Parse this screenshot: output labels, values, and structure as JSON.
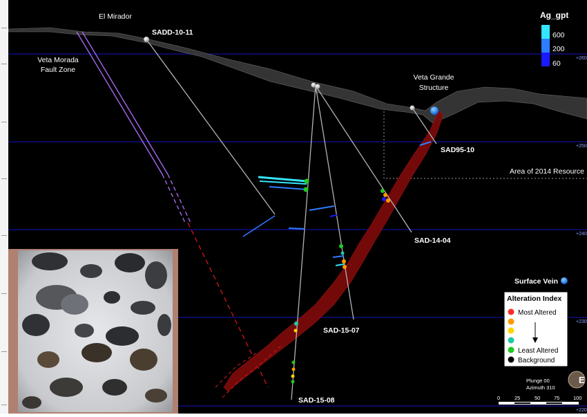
{
  "labels": {
    "el_mirador": "El Mirador",
    "fault_line1": "Veta Morada",
    "fault_line2": "Fault Zone",
    "veta_grande_line1": "Veta Grande",
    "veta_grande_line2": "Structure",
    "area_2014": "Area of 2014 Resource"
  },
  "drillholes": {
    "sadd_10_11": "SADD-10-11",
    "sad95_10": "SAD95-10",
    "sad_14_04": "SAD-14-04",
    "sad_15_07": "SAD-15-07",
    "sad_15_08": "SAD-15-08"
  },
  "elevation_ticks": [
    "+260",
    "+250",
    "+240",
    "+230",
    "+220"
  ],
  "grade_legend": {
    "title": "Ag_gpt",
    "entries": [
      {
        "label": "600",
        "color": "#33e6ff"
      },
      {
        "label": "200",
        "color": "#2f7dff"
      },
      {
        "label": "60",
        "color": "#1a1aff"
      }
    ]
  },
  "surface_vein": {
    "label": "Surface Vein",
    "color": "#1e88ff"
  },
  "alteration_legend": {
    "title": "Alteration Index",
    "entries": [
      {
        "label": "Most Altered",
        "color": "#ff2a2a"
      },
      {
        "label": "",
        "color": "#ff9900"
      },
      {
        "label": "",
        "color": "#ffd400"
      },
      {
        "label": "",
        "color": "#20c9a6"
      },
      {
        "label": "Least Altered",
        "color": "#22c922"
      },
      {
        "label": "Background",
        "color": "#000000"
      }
    ]
  },
  "view": {
    "plunge": "Plunge 00",
    "azimuth": "Azimuth 310"
  },
  "scale_bar": {
    "ticks": [
      "0",
      "25",
      "50",
      "75",
      "100"
    ]
  },
  "colors": {
    "background": "#000000",
    "grid": "#1414c8",
    "vein": "#7a0a0a",
    "fault": "#b070ff",
    "drill": "#b4b4b4"
  }
}
